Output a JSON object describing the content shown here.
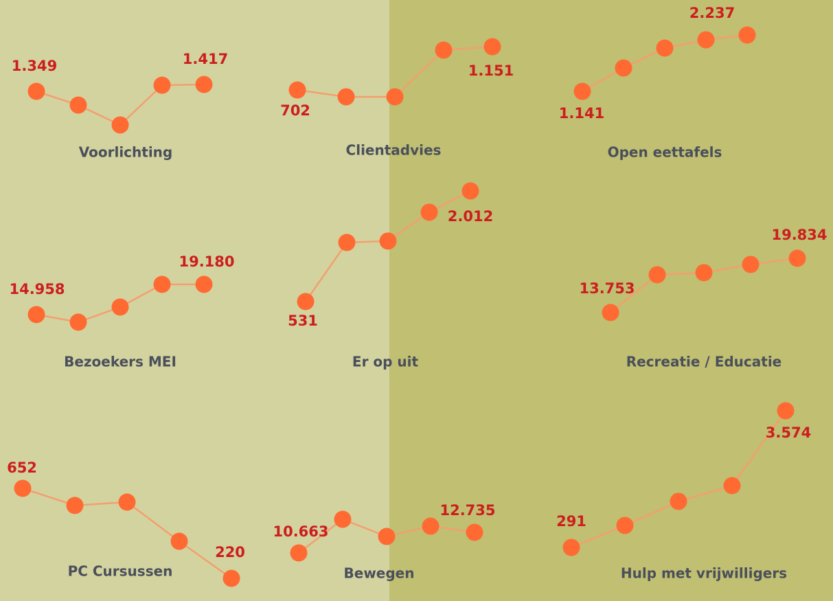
{
  "chart_data": [
    {
      "type": "line",
      "title": "Voorlichting",
      "values": [
        1349,
        1213,
        1016,
        1410,
        1417
      ],
      "value_labels": [
        "1.349",
        null,
        null,
        null,
        "1.417"
      ]
    },
    {
      "type": "line",
      "title": "Clientadvies",
      "values": [
        702,
        631,
        631,
        1116,
        1151
      ],
      "value_labels": [
        "702",
        null,
        null,
        null,
        "1.151"
      ]
    },
    {
      "type": "line",
      "title": "Open eettafels",
      "values": [
        1141,
        1596,
        1983,
        2144,
        2237
      ],
      "value_labels": [
        "1.141",
        null,
        null,
        null,
        "2.237"
      ]
    },
    {
      "type": "line",
      "title": "Bezoekers MEI",
      "values": [
        14958,
        13902,
        16014,
        19180,
        19180
      ],
      "value_labels": [
        "14.958",
        null,
        null,
        null,
        "19.180"
      ]
    },
    {
      "type": "line",
      "title": "Er op uit",
      "values": [
        531,
        1322,
        1341,
        1727,
        2012
      ],
      "value_labels": [
        "531",
        null,
        null,
        null,
        "2.012"
      ]
    },
    {
      "type": "line",
      "title": "Recreatie / Educatie",
      "values": [
        13753,
        17988,
        18219,
        19143,
        19834
      ],
      "value_labels": [
        "13.753",
        null,
        null,
        null,
        "19.834"
      ]
    },
    {
      "type": "line",
      "title": "PC Cursussen",
      "values": [
        652,
        570,
        586,
        398,
        220
      ],
      "value_labels": [
        "652",
        null,
        null,
        null,
        "220"
      ]
    },
    {
      "type": "line",
      "title": "Bewegen",
      "values": [
        10663,
        14044,
        12319,
        13354,
        12735
      ],
      "value_labels": [
        "10.663",
        null,
        null,
        null,
        "12.735"
      ]
    },
    {
      "type": "line",
      "title": "Hulp met vrijwilligers",
      "values": [
        291,
        819,
        1397,
        1776,
        3574
      ],
      "value_labels": [
        "291",
        null,
        null,
        null,
        "3.574"
      ]
    }
  ]
}
